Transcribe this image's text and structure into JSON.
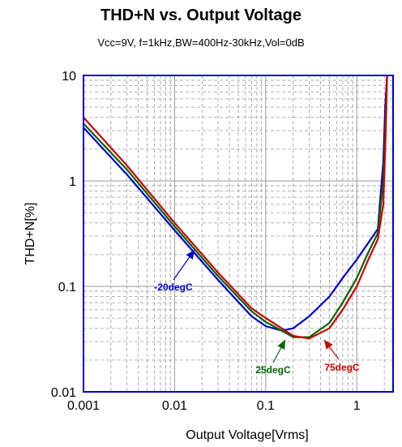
{
  "chart_data": {
    "type": "line",
    "title": "THD+N vs. Output Voltage",
    "subtitle": "Vcc=9V, f=1kHz,BW=400Hz-30kHz,Vol=0dB",
    "xlabel": "Output Voltage[Vrms]",
    "ylabel": "THD+N[%]",
    "x_scale": "log",
    "y_scale": "log",
    "xlim": [
      0.001,
      2.5
    ],
    "ylim": [
      0.01,
      10
    ],
    "x_ticks": [
      "0.001",
      "0.01",
      "0.1",
      "1"
    ],
    "y_ticks": [
      "10",
      "1",
      "0.1",
      "0.01"
    ],
    "grid": true,
    "series": [
      {
        "name": "-20degC",
        "color": "#0000CC",
        "x": [
          0.001,
          0.003,
          0.01,
          0.03,
          0.07,
          0.1,
          0.15,
          0.2,
          0.3,
          0.5,
          0.7,
          1.0,
          1.3,
          1.7,
          1.95,
          2.05,
          2.15
        ],
        "y": [
          3.2,
          1.15,
          0.34,
          0.115,
          0.052,
          0.042,
          0.038,
          0.04,
          0.052,
          0.08,
          0.12,
          0.18,
          0.25,
          0.35,
          1.5,
          5.0,
          10.0
        ]
      },
      {
        "name": "25degC",
        "color": "#006600",
        "x": [
          0.001,
          0.003,
          0.01,
          0.03,
          0.07,
          0.1,
          0.15,
          0.2,
          0.3,
          0.5,
          0.7,
          1.0,
          1.3,
          1.7,
          1.95,
          2.05,
          2.15
        ],
        "y": [
          3.5,
          1.28,
          0.37,
          0.125,
          0.058,
          0.046,
          0.038,
          0.033,
          0.033,
          0.045,
          0.07,
          0.12,
          0.2,
          0.32,
          1.0,
          3.0,
          10.0
        ]
      },
      {
        "name": "75degC",
        "color": "#CC0000",
        "x": [
          0.001,
          0.003,
          0.01,
          0.03,
          0.07,
          0.1,
          0.15,
          0.2,
          0.3,
          0.5,
          0.7,
          1.0,
          1.3,
          1.7,
          1.95,
          2.05,
          2.15
        ],
        "y": [
          4.0,
          1.4,
          0.4,
          0.135,
          0.062,
          0.05,
          0.04,
          0.034,
          0.032,
          0.04,
          0.06,
          0.1,
          0.17,
          0.28,
          0.6,
          2.0,
          10.0
        ]
      }
    ],
    "annotations": [
      {
        "text": "-20degC",
        "color": "#0000CC",
        "series": 0
      },
      {
        "text": "25degC",
        "color": "#006600",
        "series": 1
      },
      {
        "text": "75degC",
        "color": "#CC0000",
        "series": 2
      }
    ]
  }
}
